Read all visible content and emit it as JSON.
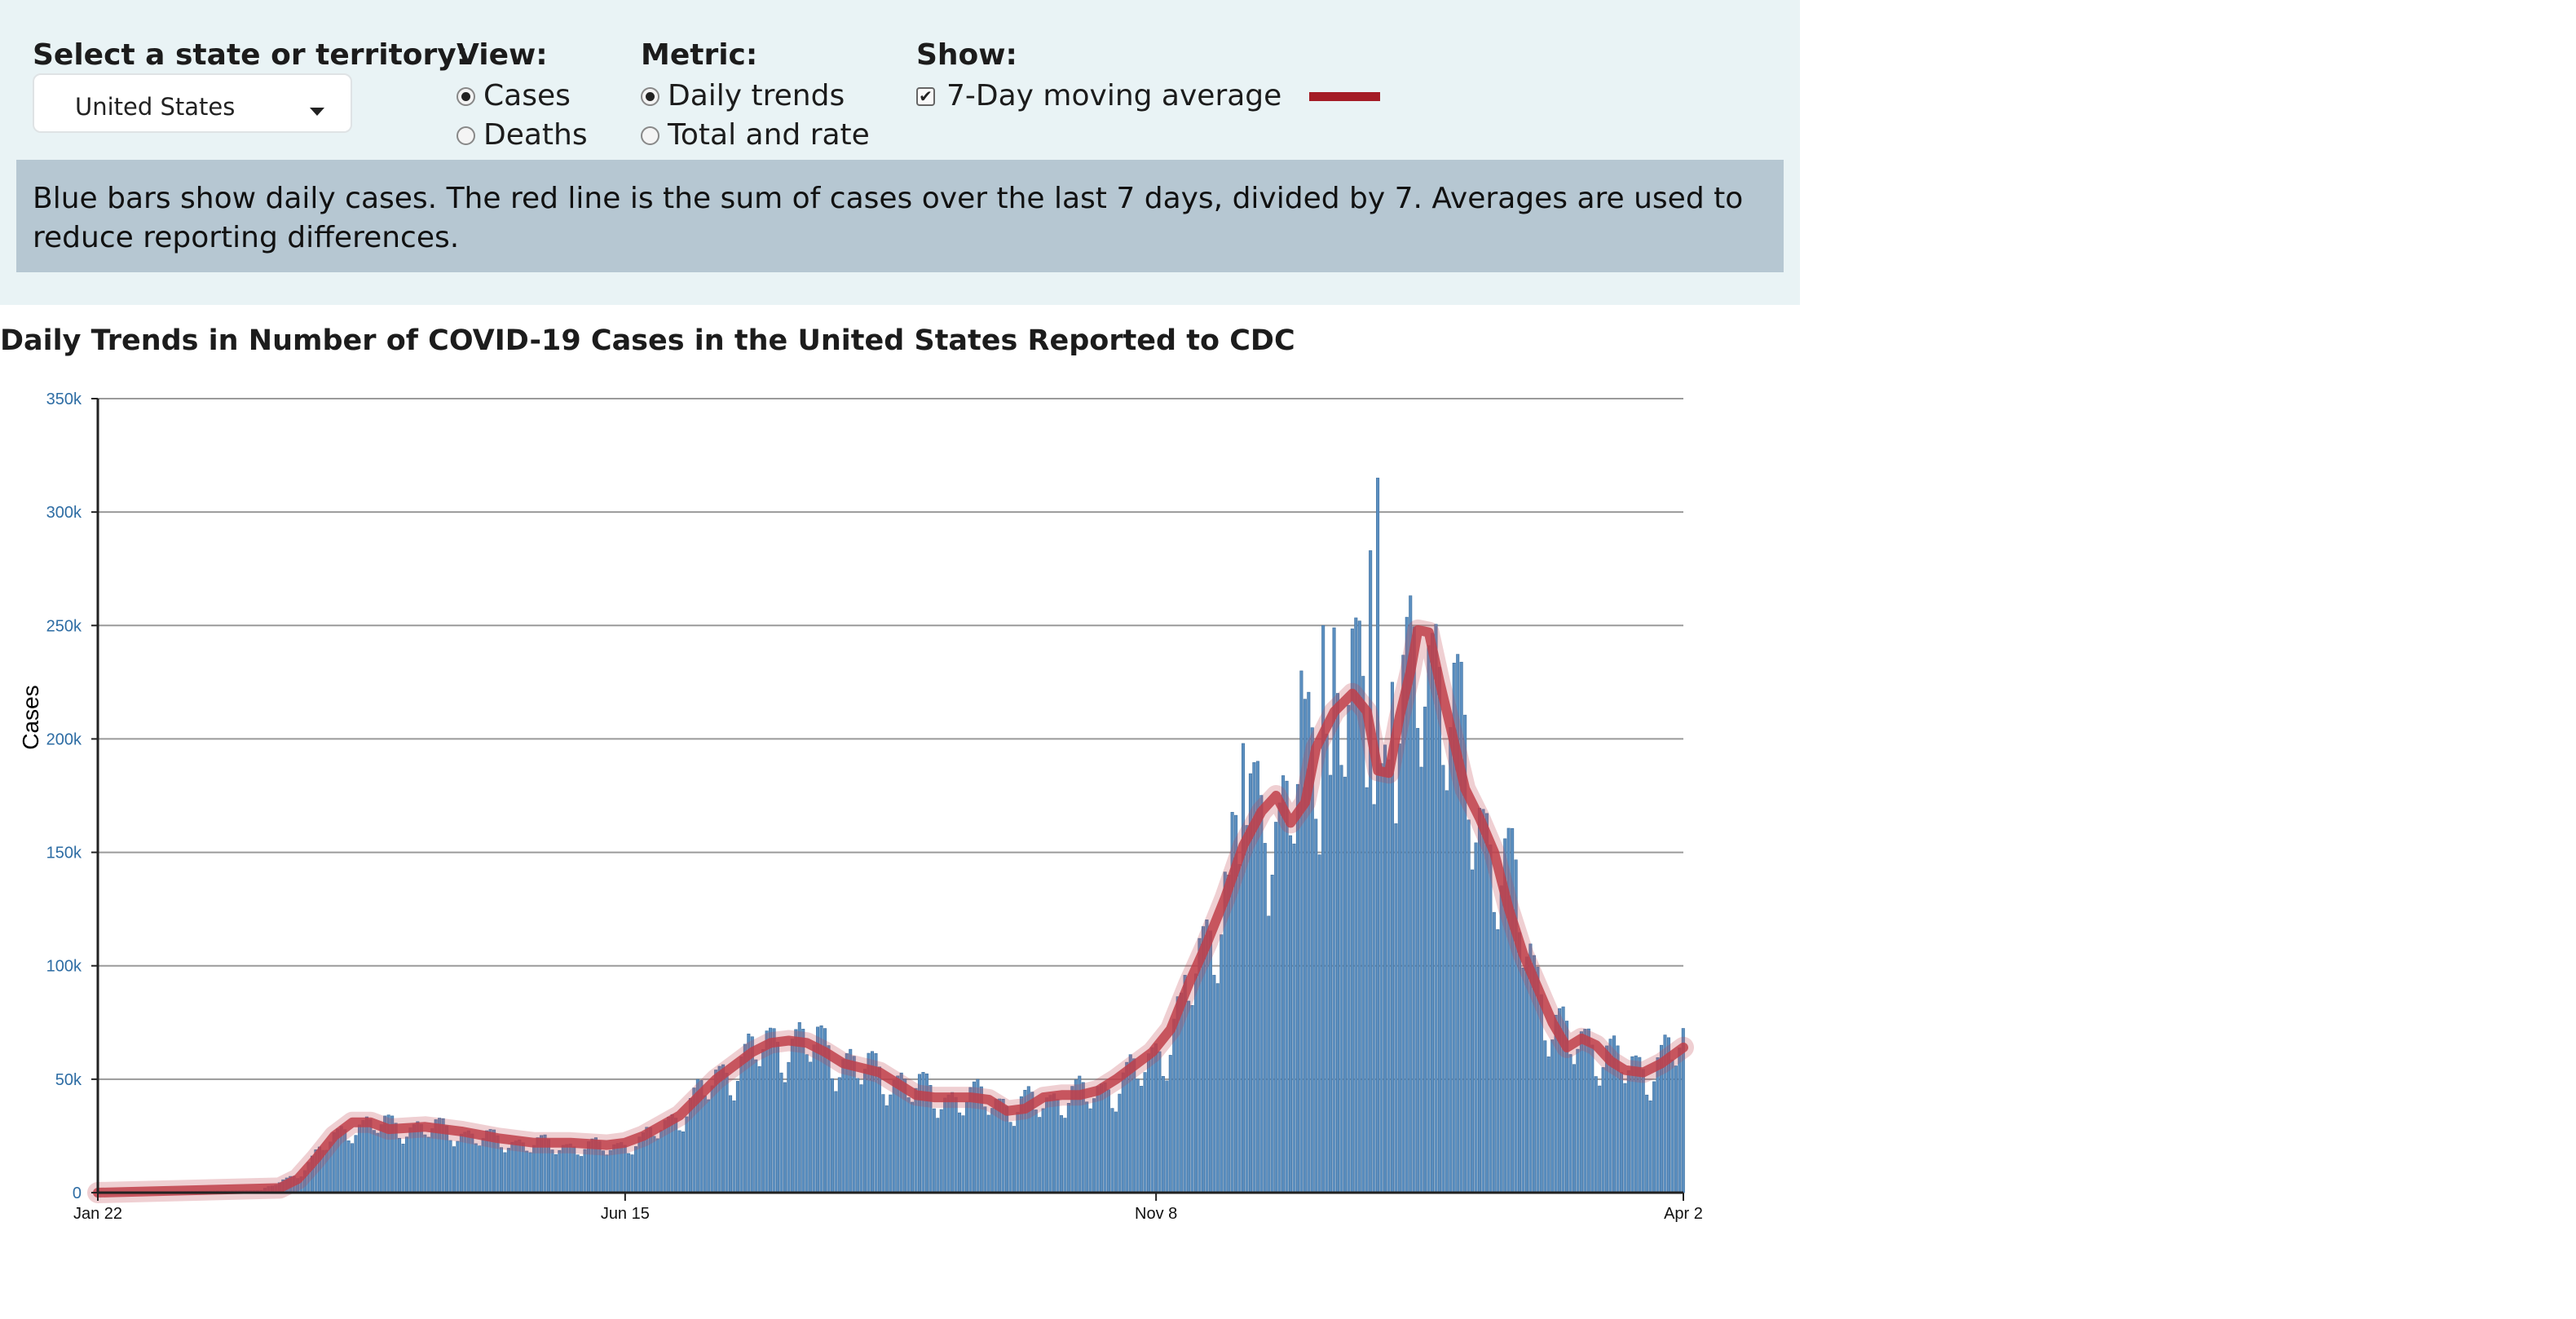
{
  "controls": {
    "state_label": "Select a state or territory:",
    "state_value": "United States",
    "view_label": "View:",
    "view_options": [
      "Cases",
      "Deaths"
    ],
    "view_selected": "Cases",
    "metric_label": "Metric:",
    "metric_options": [
      "Daily trends",
      "Total and rate"
    ],
    "metric_selected": "Daily trends",
    "show_label": "Show:",
    "show_option": "7-Day moving average",
    "show_checked": true
  },
  "note": "Blue bars show daily cases. The red line is the sum of cases over the last 7 days, divided by 7. Averages are used to reduce reporting differences.",
  "colors": {
    "bar": "#5b8fc0",
    "line": "#c0404a",
    "legend_swatch": "#a41c26",
    "tick": "#2e6da4"
  },
  "chart_data": {
    "type": "bar",
    "title": "Daily Trends in Number of COVID-19 Cases in the United States Reported to CDC",
    "ylabel": "Cases",
    "xlabel": "",
    "ylim": [
      0,
      350000
    ],
    "yticks": [
      0,
      50000,
      100000,
      150000,
      200000,
      250000,
      300000,
      350000
    ],
    "ytick_labels": [
      "0",
      "50k",
      "100k",
      "150k",
      "200k",
      "250k",
      "300k",
      "350k"
    ],
    "xticks": [
      {
        "label": "Jan 22",
        "day": 0
      },
      {
        "label": "Jun 15",
        "day": 145
      },
      {
        "label": "Nov 8",
        "day": 291
      },
      {
        "label": "Apr 2",
        "day": 436
      }
    ],
    "x_start": "2020-01-22",
    "x_end": "2021-04-02",
    "grid": true,
    "series": [
      {
        "kind": "bar",
        "description": "daily cases (approximate, read from chart; one value per day from Jan 22)",
        "knots": [
          [
            0,
            0
          ],
          [
            45,
            1000
          ],
          [
            55,
            8000
          ],
          [
            62,
            20000
          ],
          [
            70,
            30000
          ],
          [
            78,
            30000
          ],
          [
            95,
            28000
          ],
          [
            110,
            23000
          ],
          [
            125,
            21000
          ],
          [
            140,
            20000
          ],
          [
            150,
            23000
          ],
          [
            160,
            35000
          ],
          [
            170,
            50000
          ],
          [
            180,
            62000
          ],
          [
            190,
            68000
          ],
          [
            200,
            64000
          ],
          [
            210,
            55000
          ],
          [
            220,
            50000
          ],
          [
            230,
            43000
          ],
          [
            240,
            41000
          ],
          [
            245,
            43000
          ],
          [
            252,
            37000
          ],
          [
            258,
            40000
          ],
          [
            266,
            43000
          ],
          [
            272,
            43000
          ],
          [
            280,
            48000
          ],
          [
            288,
            55000
          ],
          [
            295,
            70000
          ],
          [
            300,
            90000
          ],
          [
            305,
            110000
          ],
          [
            310,
            140000
          ],
          [
            315,
            160000
          ],
          [
            320,
            172000
          ],
          [
            325,
            163000
          ],
          [
            330,
            180000
          ],
          [
            335,
            200000
          ],
          [
            340,
            210000
          ],
          [
            345,
            218000
          ],
          [
            350,
            208000
          ],
          [
            353,
            185000
          ],
          [
            356,
            190000
          ],
          [
            360,
            215000
          ],
          [
            365,
            245000
          ],
          [
            368,
            240000
          ],
          [
            372,
            215000
          ],
          [
            378,
            175000
          ],
          [
            385,
            150000
          ],
          [
            390,
            130000
          ],
          [
            395,
            100000
          ],
          [
            400,
            75000
          ],
          [
            405,
            65000
          ],
          [
            410,
            68000
          ],
          [
            415,
            62000
          ],
          [
            420,
            55000
          ],
          [
            426,
            55000
          ],
          [
            432,
            62000
          ],
          [
            436,
            65000
          ]
        ],
        "spikes": [
          [
            352,
            315000
          ],
          [
            350,
            283000
          ],
          [
            347,
            252000
          ],
          [
            340,
            249000
          ],
          [
            337,
            250000
          ],
          [
            331,
            230000
          ],
          [
            315,
            198000
          ],
          [
            311,
            140000
          ],
          [
            339,
            184000
          ],
          [
            298,
            88000
          ],
          [
            321,
            154000
          ],
          [
            356,
            225000
          ]
        ]
      },
      {
        "kind": "line",
        "name": "7-Day moving average",
        "points": [
          [
            0,
            0
          ],
          [
            50,
            2000
          ],
          [
            55,
            6000
          ],
          [
            60,
            15000
          ],
          [
            65,
            25000
          ],
          [
            70,
            31000
          ],
          [
            75,
            31000
          ],
          [
            80,
            28000
          ],
          [
            90,
            29000
          ],
          [
            100,
            27000
          ],
          [
            110,
            24000
          ],
          [
            120,
            22000
          ],
          [
            130,
            22000
          ],
          [
            140,
            21000
          ],
          [
            145,
            22000
          ],
          [
            150,
            25000
          ],
          [
            160,
            34000
          ],
          [
            170,
            50000
          ],
          [
            180,
            62000
          ],
          [
            185,
            66000
          ],
          [
            190,
            67000
          ],
          [
            195,
            66000
          ],
          [
            200,
            62000
          ],
          [
            205,
            57000
          ],
          [
            210,
            55000
          ],
          [
            215,
            53000
          ],
          [
            220,
            48000
          ],
          [
            225,
            43000
          ],
          [
            230,
            42000
          ],
          [
            235,
            42000
          ],
          [
            240,
            42000
          ],
          [
            245,
            41000
          ],
          [
            250,
            36000
          ],
          [
            255,
            37000
          ],
          [
            260,
            42000
          ],
          [
            265,
            43000
          ],
          [
            270,
            43000
          ],
          [
            275,
            45000
          ],
          [
            280,
            50000
          ],
          [
            285,
            56000
          ],
          [
            290,
            62000
          ],
          [
            295,
            72000
          ],
          [
            300,
            92000
          ],
          [
            305,
            110000
          ],
          [
            310,
            130000
          ],
          [
            315,
            153000
          ],
          [
            320,
            168000
          ],
          [
            324,
            175000
          ],
          [
            328,
            163000
          ],
          [
            332,
            172000
          ],
          [
            335,
            196000
          ],
          [
            340,
            212000
          ],
          [
            345,
            220000
          ],
          [
            349,
            212000
          ],
          [
            352,
            186000
          ],
          [
            355,
            185000
          ],
          [
            358,
            210000
          ],
          [
            361,
            230000
          ],
          [
            363,
            248000
          ],
          [
            366,
            247000
          ],
          [
            369,
            225000
          ],
          [
            372,
            205000
          ],
          [
            376,
            178000
          ],
          [
            380,
            165000
          ],
          [
            384,
            150000
          ],
          [
            388,
            125000
          ],
          [
            392,
            105000
          ],
          [
            396,
            90000
          ],
          [
            400,
            75000
          ],
          [
            404,
            64000
          ],
          [
            408,
            68000
          ],
          [
            412,
            65000
          ],
          [
            416,
            58000
          ],
          [
            420,
            54000
          ],
          [
            425,
            53000
          ],
          [
            430,
            57000
          ],
          [
            436,
            64000
          ]
        ]
      }
    ]
  }
}
